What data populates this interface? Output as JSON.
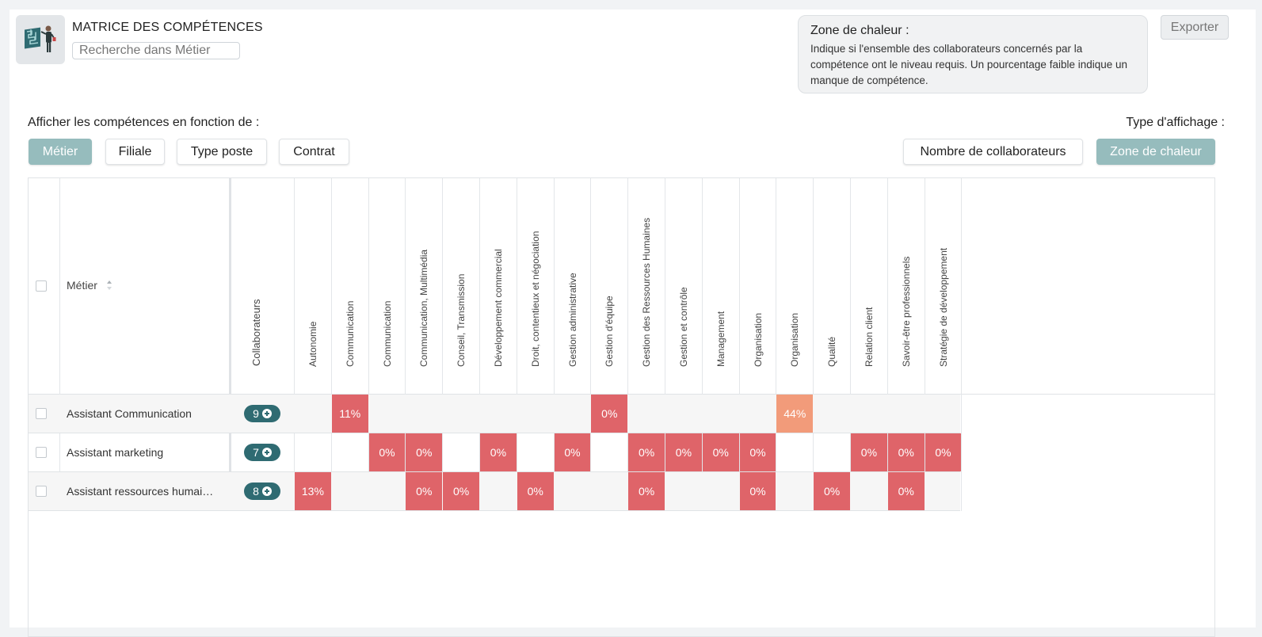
{
  "header": {
    "title": "MATRICE DES COMPÉTENCES",
    "search_placeholder": "Recherche dans Métier",
    "export_label": "Exporter"
  },
  "info": {
    "title": "Zone de chaleur :",
    "text": "Indique si l'ensemble des collaborateurs concernés par la compétence ont le niveau requis. Un pourcentage faible indique un manque de compétence."
  },
  "filters": {
    "label": "Afficher les compétences en fonction de :",
    "buttons": [
      "Métier",
      "Filiale",
      "Type poste",
      "Contrat"
    ],
    "active": "Métier"
  },
  "display": {
    "label": "Type d'affichage :",
    "buttons": [
      "Nombre de collaborateurs",
      "Zone de chaleur"
    ],
    "active": "Zone de chaleur"
  },
  "table": {
    "metier_header": "Métier",
    "collaborateurs_header": "Collaborateurs",
    "skills": [
      "Autonomie",
      "Communication",
      "Communication",
      "Communication, Multimédia",
      "Conseil, Transmission",
      "Développement commercial",
      "Droit, contentieux et négociation",
      "Gestion administrative",
      "Gestion d'équipe",
      "Gestion des Ressources Humaines",
      "Gestion et contrôle",
      "Management",
      "Organisation",
      "Organisation",
      "Qualité",
      "Relation client",
      "Savoir-être professionnels",
      "Stratégie de développement"
    ],
    "rows": [
      {
        "label": "Assistant Communication",
        "count": "9",
        "cells": [
          null,
          "11%",
          null,
          null,
          null,
          null,
          null,
          null,
          "0%",
          null,
          null,
          null,
          null,
          "44%",
          null,
          null,
          null,
          null
        ]
      },
      {
        "label": "Assistant marketing",
        "count": "7",
        "cells": [
          null,
          null,
          "0%",
          "0%",
          null,
          "0%",
          null,
          "0%",
          null,
          "0%",
          "0%",
          "0%",
          "0%",
          null,
          null,
          "0%",
          "0%",
          "0%"
        ]
      },
      {
        "label": "Assistant ressources humaines",
        "count": "8",
        "cells": [
          "13%",
          null,
          null,
          "0%",
          "0%",
          null,
          "0%",
          null,
          null,
          "0%",
          null,
          null,
          "0%",
          null,
          "0%",
          null,
          "0%",
          null
        ]
      }
    ]
  },
  "colors": {
    "accent": "#96bcbd",
    "pill": "#2f6b72",
    "heat_low": "#df6469",
    "heat_mid": "#f29b7a"
  }
}
